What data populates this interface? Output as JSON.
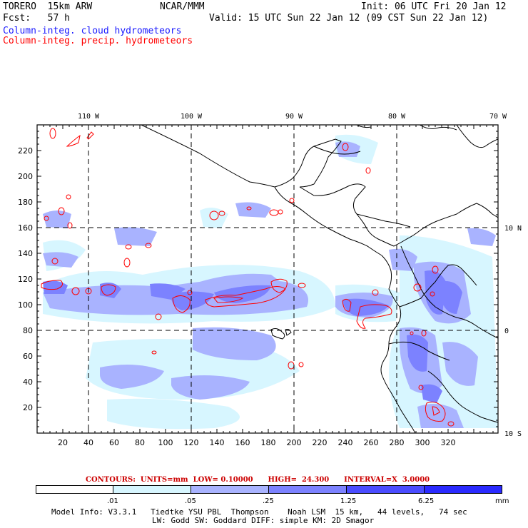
{
  "header": {
    "model": "TORERO  15km ARW",
    "org": "NCAR/MMM",
    "init": "Init: 06 UTC Fri 20 Jan 12",
    "fcst": "Fcst:   57 h",
    "valid": "Valid: 15 UTC Sun 22 Jan 12 (09 CST Sun 22 Jan 12)",
    "line_cloud": "Column-integ. cloud hydrometeors",
    "line_precip": "Column-integ. precip. hydrometeors"
  },
  "map": {
    "lon_labels": [
      "110 W",
      "100 W",
      "90 W",
      "80 W",
      "70 W"
    ],
    "lat_labels": [
      "10 N",
      "0",
      "10 S"
    ],
    "y_ticks": [
      "220",
      "200",
      "180",
      "160",
      "140",
      "120",
      "100",
      "80",
      "60",
      "40",
      "20"
    ],
    "x_ticks": [
      "20",
      "40",
      "60",
      "80",
      "100",
      "120",
      "140",
      "160",
      "180",
      "200",
      "220",
      "240",
      "260",
      "280",
      "300",
      "320"
    ],
    "colors": {
      "cloud_light": "#c8f0ff",
      "cloud_mid": "#a8b4ff",
      "cloud_dark": "#6d78f5",
      "precip": "#ff0000",
      "coast": "#000000"
    }
  },
  "legend": {
    "contours_note": "CONTOURS:  UNITS=mm  LOW= 0.10000      HIGH=  24.300      INTERVAL=X  3.0000",
    "bins": [
      {
        "label": ".01",
        "color": "#ffffff"
      },
      {
        "label": ".05",
        "color": "#d7f6ff"
      },
      {
        "label": ".25",
        "color": "#a9b3ff"
      },
      {
        "label": "1.25",
        "color": "#7c82ff"
      },
      {
        "label": "6.25",
        "color": "#4a4cff"
      },
      {
        "label": "",
        "color": "#2a2aff"
      }
    ],
    "unit": "mm"
  },
  "footer": {
    "line1": "Model Info: V3.3.1   Tiedtke YSU PBL  Thompson    Noah LSM  15 km,   44 levels,   74 sec",
    "line2": "LW: Godd SW: Goddard DIFF: simple KM: 2D Smagor"
  }
}
